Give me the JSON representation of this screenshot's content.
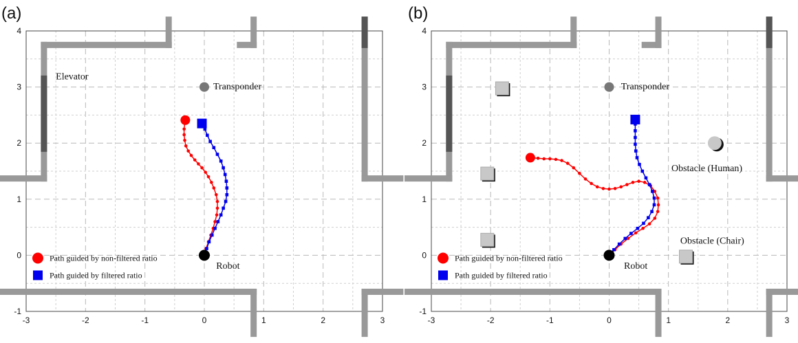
{
  "chart_data": [
    {
      "type": "scatter",
      "panel_label": "(a)",
      "xlim": [
        -3,
        3
      ],
      "ylim": [
        -1,
        4
      ],
      "x_ticks": [
        "-3",
        "-2",
        "-1",
        "0",
        "1",
        "2",
        "3"
      ],
      "y_ticks": [
        "-1",
        "0",
        "1",
        "2",
        "3",
        "4"
      ],
      "grid": true,
      "legend_placement": "bottom-left",
      "series": [
        {
          "name": "Path guided by non-filtered ratio",
          "color": "#ff0000",
          "marker": "circle",
          "points": [
            [
              0.0,
              0.0
            ],
            [
              0.03,
              0.12
            ],
            [
              0.07,
              0.24
            ],
            [
              0.11,
              0.36
            ],
            [
              0.15,
              0.48
            ],
            [
              0.18,
              0.6
            ],
            [
              0.21,
              0.72
            ],
            [
              0.22,
              0.84
            ],
            [
              0.22,
              0.96
            ],
            [
              0.2,
              1.08
            ],
            [
              0.16,
              1.2
            ],
            [
              0.12,
              1.3
            ],
            [
              0.07,
              1.4
            ],
            [
              0.02,
              1.48
            ],
            [
              -0.04,
              1.56
            ],
            [
              -0.1,
              1.63
            ],
            [
              -0.16,
              1.7
            ],
            [
              -0.22,
              1.78
            ],
            [
              -0.27,
              1.86
            ],
            [
              -0.31,
              1.95
            ],
            [
              -0.33,
              2.05
            ],
            [
              -0.34,
              2.15
            ],
            [
              -0.34,
              2.25
            ],
            [
              -0.33,
              2.35
            ],
            [
              -0.32,
              2.41
            ]
          ]
        },
        {
          "name": "Path guided by filtered ratio",
          "color": "#0000ee",
          "marker": "square",
          "points": [
            [
              0.0,
              0.0
            ],
            [
              0.04,
              0.12
            ],
            [
              0.08,
              0.24
            ],
            [
              0.13,
              0.36
            ],
            [
              0.18,
              0.48
            ],
            [
              0.23,
              0.6
            ],
            [
              0.28,
              0.72
            ],
            [
              0.32,
              0.84
            ],
            [
              0.36,
              0.96
            ],
            [
              0.38,
              1.08
            ],
            [
              0.38,
              1.2
            ],
            [
              0.37,
              1.32
            ],
            [
              0.35,
              1.44
            ],
            [
              0.32,
              1.56
            ],
            [
              0.28,
              1.68
            ],
            [
              0.22,
              1.8
            ],
            [
              0.16,
              1.92
            ],
            [
              0.1,
              2.03
            ],
            [
              0.05,
              2.14
            ],
            [
              0.01,
              2.25
            ],
            [
              -0.04,
              2.35
            ]
          ]
        }
      ],
      "annotations": [
        {
          "text": "Elevator",
          "x": -2.5,
          "y": 3.2
        },
        {
          "text": "Transponder",
          "x": 0.15,
          "y": 3.02
        },
        {
          "text": "Robot",
          "x": 0.2,
          "y": -0.18
        }
      ],
      "markers": [
        {
          "kind": "transponder",
          "x": 0.0,
          "y": 3.0,
          "color": "#777777"
        },
        {
          "kind": "robot",
          "x": 0.0,
          "y": 0.0,
          "color": "#000000"
        }
      ],
      "obstacles": [],
      "walls": [
        {
          "x1": -2.7,
          "y1": 3.75,
          "x2": -0.6,
          "y2": 3.75,
          "color": "#999999"
        },
        {
          "x1": -0.6,
          "y1": 3.75,
          "x2": -0.6,
          "y2": 4.2,
          "color": "#999999"
        },
        {
          "x1": 0.6,
          "y1": 3.75,
          "x2": 0.83,
          "y2": 3.75,
          "color": "#999999"
        },
        {
          "x1": 0.83,
          "y1": 3.75,
          "x2": 0.83,
          "y2": 4.2,
          "color": "#999999"
        },
        {
          "x1": -2.7,
          "y1": 3.75,
          "x2": -2.7,
          "y2": 1.37,
          "color": "#999999"
        },
        {
          "x1": -2.7,
          "y1": 3.15,
          "x2": -2.7,
          "y2": 1.9,
          "color": "#555555"
        },
        {
          "x1": -2.7,
          "y1": 1.37,
          "x2": -3.4,
          "y2": 1.37,
          "color": "#999999"
        },
        {
          "x1": 2.7,
          "y1": 4.2,
          "x2": 2.7,
          "y2": 1.37,
          "color": "#999999"
        },
        {
          "x1": 2.7,
          "y1": 4.2,
          "x2": 2.7,
          "y2": 3.75,
          "color": "#555555"
        },
        {
          "x1": 2.7,
          "y1": 1.37,
          "x2": 3.3,
          "y2": 1.37,
          "color": "#999999"
        },
        {
          "x1": -3.4,
          "y1": -0.65,
          "x2": 0.83,
          "y2": -0.65,
          "color": "#999999"
        },
        {
          "x1": 0.83,
          "y1": -0.65,
          "x2": 0.83,
          "y2": -1.4,
          "color": "#999999"
        },
        {
          "x1": 2.7,
          "y1": -0.65,
          "x2": 3.3,
          "y2": -0.65,
          "color": "#999999"
        },
        {
          "x1": 2.7,
          "y1": -0.65,
          "x2": 2.7,
          "y2": -1.4,
          "color": "#999999"
        }
      ]
    },
    {
      "type": "scatter",
      "panel_label": "(b)",
      "xlim": [
        -3,
        3
      ],
      "ylim": [
        -1,
        4
      ],
      "x_ticks": [
        "-3",
        "-2",
        "-1",
        "0",
        "1",
        "2",
        "3"
      ],
      "y_ticks": [
        "-1",
        "0",
        "1",
        "2",
        "3",
        "4"
      ],
      "grid": true,
      "legend_placement": "bottom-left",
      "series": [
        {
          "name": "Path guided by non-filtered ratio",
          "color": "#ff0000",
          "marker": "circle",
          "points": [
            [
              0.0,
              0.0
            ],
            [
              0.1,
              0.1
            ],
            [
              0.2,
              0.2
            ],
            [
              0.32,
              0.3
            ],
            [
              0.45,
              0.4
            ],
            [
              0.57,
              0.48
            ],
            [
              0.68,
              0.56
            ],
            [
              0.77,
              0.66
            ],
            [
              0.82,
              0.78
            ],
            [
              0.83,
              0.9
            ],
            [
              0.82,
              1.02
            ],
            [
              0.77,
              1.14
            ],
            [
              0.7,
              1.24
            ],
            [
              0.6,
              1.3
            ],
            [
              0.5,
              1.32
            ],
            [
              0.4,
              1.3
            ],
            [
              0.3,
              1.26
            ],
            [
              0.2,
              1.22
            ],
            [
              0.1,
              1.19
            ],
            [
              0.0,
              1.18
            ],
            [
              -0.1,
              1.19
            ],
            [
              -0.2,
              1.22
            ],
            [
              -0.3,
              1.28
            ],
            [
              -0.4,
              1.36
            ],
            [
              -0.5,
              1.46
            ],
            [
              -0.6,
              1.56
            ],
            [
              -0.7,
              1.64
            ],
            [
              -0.8,
              1.69
            ],
            [
              -0.9,
              1.71
            ],
            [
              -1.0,
              1.72
            ],
            [
              -1.1,
              1.72
            ],
            [
              -1.2,
              1.73
            ],
            [
              -1.33,
              1.74
            ]
          ]
        },
        {
          "name": "Path guided by filtered ratio",
          "color": "#0000ee",
          "marker": "square",
          "points": [
            [
              0.0,
              0.0
            ],
            [
              0.08,
              0.1
            ],
            [
              0.17,
              0.2
            ],
            [
              0.27,
              0.3
            ],
            [
              0.37,
              0.39
            ],
            [
              0.48,
              0.48
            ],
            [
              0.58,
              0.57
            ],
            [
              0.66,
              0.67
            ],
            [
              0.72,
              0.78
            ],
            [
              0.76,
              0.9
            ],
            [
              0.76,
              1.02
            ],
            [
              0.73,
              1.14
            ],
            [
              0.68,
              1.26
            ],
            [
              0.62,
              1.38
            ],
            [
              0.56,
              1.5
            ],
            [
              0.51,
              1.62
            ],
            [
              0.47,
              1.74
            ],
            [
              0.45,
              1.86
            ],
            [
              0.44,
              1.98
            ],
            [
              0.44,
              2.1
            ],
            [
              0.44,
              2.22
            ],
            [
              0.44,
              2.34
            ],
            [
              0.44,
              2.42
            ]
          ]
        }
      ],
      "annotations": [
        {
          "text": "Transponder",
          "x": 0.2,
          "y": 3.02
        },
        {
          "text": "Robot",
          "x": 0.25,
          "y": -0.18
        },
        {
          "text": "Obstacle (Human)",
          "x": 1.05,
          "y": 1.56
        },
        {
          "text": "Obstacle (Chair)",
          "x": 1.2,
          "y": 0.27
        }
      ],
      "markers": [
        {
          "kind": "transponder",
          "x": 0.0,
          "y": 3.0,
          "color": "#777777"
        },
        {
          "kind": "robot",
          "x": 0.0,
          "y": 0.0,
          "color": "#000000"
        }
      ],
      "obstacles": [
        {
          "kind": "square",
          "x": -1.8,
          "y": 2.97
        },
        {
          "kind": "square",
          "x": -2.05,
          "y": 1.45
        },
        {
          "kind": "square",
          "x": -2.05,
          "y": 0.27
        },
        {
          "kind": "square",
          "x": 1.3,
          "y": -0.03
        },
        {
          "kind": "circle",
          "x": 1.78,
          "y": 2.0
        }
      ],
      "walls": [
        {
          "x1": -2.7,
          "y1": 3.75,
          "x2": -0.6,
          "y2": 3.75,
          "color": "#999999"
        },
        {
          "x1": -0.6,
          "y1": 3.75,
          "x2": -0.6,
          "y2": 4.2,
          "color": "#999999"
        },
        {
          "x1": 0.6,
          "y1": 3.75,
          "x2": 0.83,
          "y2": 3.75,
          "color": "#999999"
        },
        {
          "x1": 0.83,
          "y1": 3.75,
          "x2": 0.83,
          "y2": 4.2,
          "color": "#999999"
        },
        {
          "x1": -2.7,
          "y1": 3.75,
          "x2": -2.7,
          "y2": 1.37,
          "color": "#999999"
        },
        {
          "x1": -2.7,
          "y1": 3.15,
          "x2": -2.7,
          "y2": 1.9,
          "color": "#555555"
        },
        {
          "x1": -2.7,
          "y1": 1.37,
          "x2": -3.4,
          "y2": 1.37,
          "color": "#999999"
        },
        {
          "x1": 2.7,
          "y1": 4.2,
          "x2": 2.7,
          "y2": 1.37,
          "color": "#999999"
        },
        {
          "x1": 2.7,
          "y1": 4.2,
          "x2": 2.7,
          "y2": 3.75,
          "color": "#555555"
        },
        {
          "x1": 2.7,
          "y1": 1.37,
          "x2": 3.3,
          "y2": 1.37,
          "color": "#999999"
        },
        {
          "x1": -3.4,
          "y1": -0.65,
          "x2": 0.83,
          "y2": -0.65,
          "color": "#999999"
        },
        {
          "x1": 0.83,
          "y1": -0.65,
          "x2": 0.83,
          "y2": -1.4,
          "color": "#999999"
        },
        {
          "x1": 2.7,
          "y1": -0.65,
          "x2": 3.3,
          "y2": -0.65,
          "color": "#999999"
        },
        {
          "x1": 2.7,
          "y1": -0.65,
          "x2": 2.7,
          "y2": -1.4,
          "color": "#999999"
        }
      ]
    }
  ]
}
